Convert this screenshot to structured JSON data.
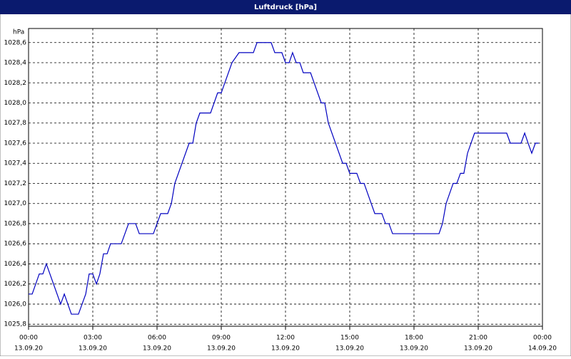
{
  "chart_data": {
    "type": "line",
    "title": "Luftdruck [hPa]",
    "y_unit": "hPa",
    "x": [
      0,
      0.17,
      0.5,
      0.67,
      0.83,
      1.5,
      1.67,
      2,
      2.33,
      2.67,
      2.83,
      3,
      3.17,
      3.33,
      3.5,
      3.67,
      3.83,
      4.33,
      4.67,
      5,
      5.17,
      5.83,
      6.17,
      6.5,
      6.67,
      6.83,
      7.5,
      7.67,
      7.83,
      8,
      8.5,
      8.83,
      9,
      9.5,
      9.83,
      10.5,
      10.67,
      11.33,
      11.5,
      11.83,
      12,
      12.17,
      12.33,
      12.5,
      12.67,
      12.83,
      13.17,
      13.67,
      13.83,
      14,
      14.67,
      14.83,
      15,
      15.33,
      15.5,
      15.67,
      16.17,
      16.5,
      16.67,
      16.83,
      17,
      19.17,
      19.33,
      19.5,
      19.83,
      20,
      20.17,
      20.33,
      20.5,
      20.83,
      22.33,
      22.5,
      23,
      23.17,
      23.33,
      23.5,
      23.67,
      23.83
    ],
    "series": [
      {
        "name": "Luftdruck",
        "color": "#0000c0",
        "values": [
          1026.1,
          1026.1,
          1026.3,
          1026.3,
          1026.4,
          1026.0,
          1026.1,
          1025.9,
          1025.9,
          1026.1,
          1026.3,
          1026.3,
          1026.2,
          1026.3,
          1026.5,
          1026.5,
          1026.6,
          1026.6,
          1026.8,
          1026.8,
          1026.7,
          1026.7,
          1026.9,
          1026.9,
          1027.0,
          1027.2,
          1027.6,
          1027.6,
          1027.8,
          1027.9,
          1027.9,
          1028.1,
          1028.1,
          1028.4,
          1028.5,
          1028.5,
          1028.6,
          1028.6,
          1028.5,
          1028.5,
          1028.4,
          1028.4,
          1028.5,
          1028.4,
          1028.4,
          1028.3,
          1028.3,
          1028.0,
          1028.0,
          1027.8,
          1027.4,
          1027.4,
          1027.3,
          1027.3,
          1027.2,
          1027.2,
          1026.9,
          1026.9,
          1026.8,
          1026.8,
          1026.7,
          1026.7,
          1026.8,
          1027.0,
          1027.2,
          1027.2,
          1027.3,
          1027.3,
          1027.5,
          1027.7,
          1027.7,
          1027.6,
          1027.6,
          1027.7,
          1027.6,
          1027.5,
          1027.6,
          1027.6
        ]
      }
    ],
    "xlim": [
      0,
      24
    ],
    "ylim": [
      1025.78,
      1028.74
    ],
    "xticks": [
      {
        "value": 0,
        "label": "00:00"
      },
      {
        "value": 3,
        "label": "03:00"
      },
      {
        "value": 6,
        "label": "06:00"
      },
      {
        "value": 9,
        "label": "09:00"
      },
      {
        "value": 12,
        "label": "12:00"
      },
      {
        "value": 15,
        "label": "15:00"
      },
      {
        "value": 18,
        "label": "18:00"
      },
      {
        "value": 21,
        "label": "21:00"
      },
      {
        "value": 24,
        "label": "00:00"
      }
    ],
    "xtick_dates": [
      "13.09.20",
      "13.09.20",
      "13.09.20",
      "13.09.20",
      "13.09.20",
      "13.09.20",
      "13.09.20",
      "13.09.20",
      "14.09.20"
    ],
    "yticks": [
      {
        "value": 1025.8,
        "label": "1025,8"
      },
      {
        "value": 1026.0,
        "label": "1026,0"
      },
      {
        "value": 1026.2,
        "label": "1026,2"
      },
      {
        "value": 1026.4,
        "label": "1026,4"
      },
      {
        "value": 1026.6,
        "label": "1026,6"
      },
      {
        "value": 1026.8,
        "label": "1026,8"
      },
      {
        "value": 1027.0,
        "label": "1027,0"
      },
      {
        "value": 1027.2,
        "label": "1027,2"
      },
      {
        "value": 1027.4,
        "label": "1027,4"
      },
      {
        "value": 1027.6,
        "label": "1027,6"
      },
      {
        "value": 1027.8,
        "label": "1027,8"
      },
      {
        "value": 1028.0,
        "label": "1028,0"
      },
      {
        "value": 1028.2,
        "label": "1028,2"
      },
      {
        "value": 1028.4,
        "label": "1028,4"
      },
      {
        "value": 1028.6,
        "label": "1028,6"
      }
    ],
    "grid": true
  }
}
